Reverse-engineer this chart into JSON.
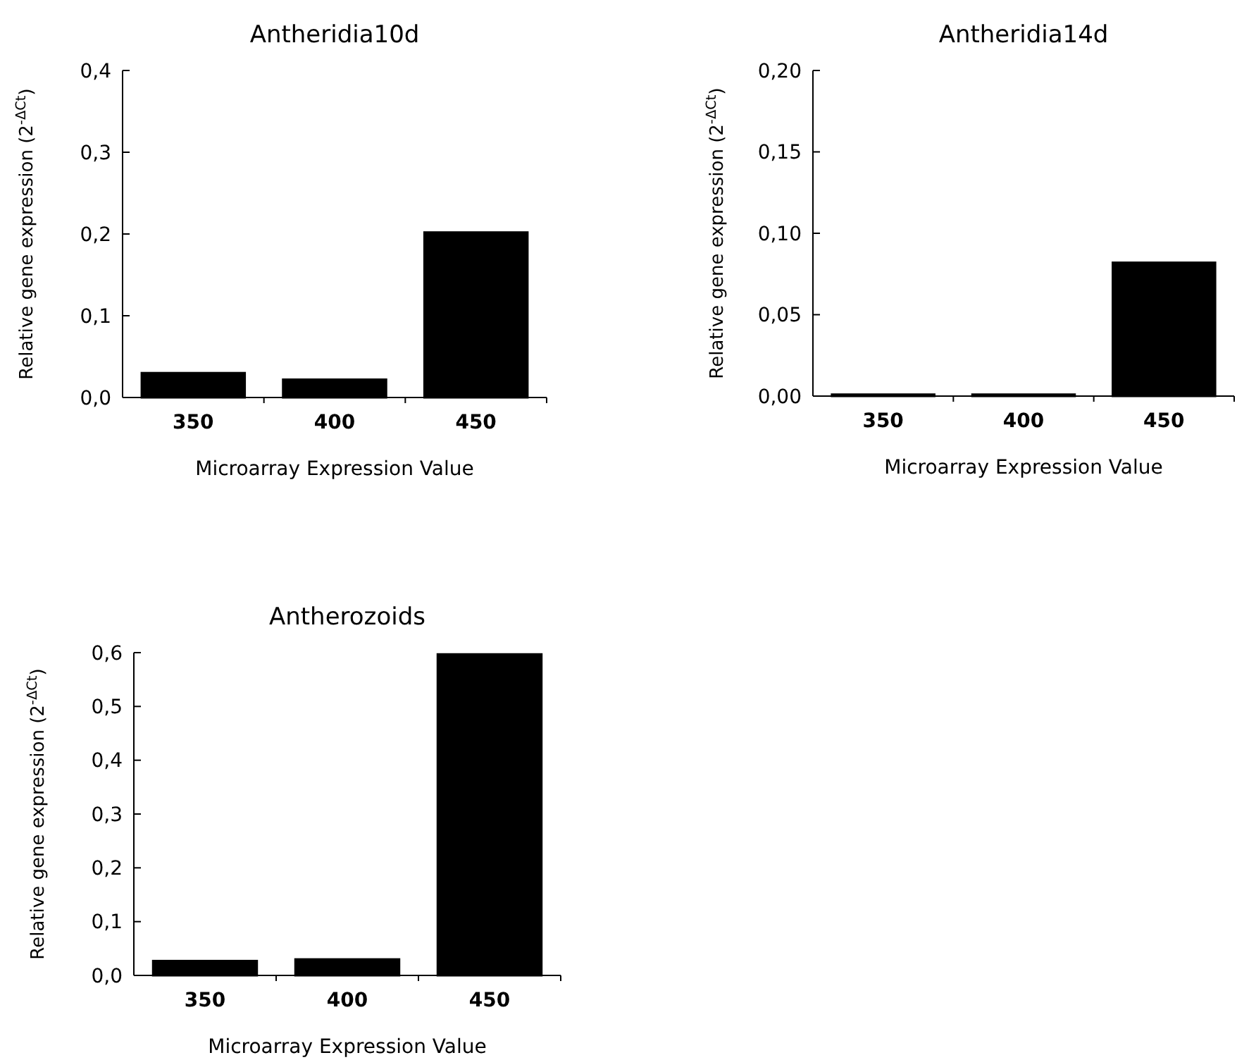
{
  "chart_data": [
    {
      "type": "bar",
      "title": "Antheridia10d",
      "xlabel": "Microarray Expression Value",
      "ylabel": "Relative gene expression (2$^{-ΔCt}$)",
      "categories": [
        "350",
        "400",
        "450"
      ],
      "values": [
        0.03,
        0.022,
        0.202
      ],
      "color": "#000000",
      "ylim": [
        0,
        0.4
      ],
      "yticks": [
        {
          "value": 0,
          "label": "0,0"
        },
        {
          "value": 0.1,
          "label": "0,1"
        },
        {
          "value": 0.2,
          "label": "0,2"
        },
        {
          "value": 0.3,
          "label": "0,3"
        },
        {
          "value": 0.4,
          "label": "0,4"
        }
      ]
    },
    {
      "type": "bar",
      "title": "Antheridia14d",
      "xlabel": "Microarray Expression Value",
      "ylabel": "Relative gene expression (2$^{-ΔCt}$)",
      "categories": [
        "350",
        "400",
        "450"
      ],
      "values": [
        0.001,
        0.001,
        0.082
      ],
      "color": "#000000",
      "ylim": [
        0,
        0.2
      ],
      "yticks": [
        {
          "value": 0,
          "label": "0,00"
        },
        {
          "value": 0.05,
          "label": "0,05"
        },
        {
          "value": 0.1,
          "label": "0,10"
        },
        {
          "value": 0.15,
          "label": "0,15"
        },
        {
          "value": 0.2,
          "label": "0,20"
        }
      ]
    },
    {
      "type": "bar",
      "title": "Antherozoids",
      "xlabel": "Microarray Expression Value",
      "ylabel": "Relative gene expression (2$^{-ΔCt}$)",
      "categories": [
        "350",
        "400",
        "450"
      ],
      "values": [
        0.027,
        0.03,
        0.597
      ],
      "color": "#000000",
      "ylim": [
        0,
        0.6
      ],
      "yticks": [
        {
          "value": 0,
          "label": "0,0"
        },
        {
          "value": 0.1,
          "label": "0,1"
        },
        {
          "value": 0.2,
          "label": "0,2"
        },
        {
          "value": 0.3,
          "label": "0,3"
        },
        {
          "value": 0.4,
          "label": "0,4"
        },
        {
          "value": 0.5,
          "label": "0,5"
        },
        {
          "value": 0.6,
          "label": "0,6"
        }
      ]
    }
  ]
}
